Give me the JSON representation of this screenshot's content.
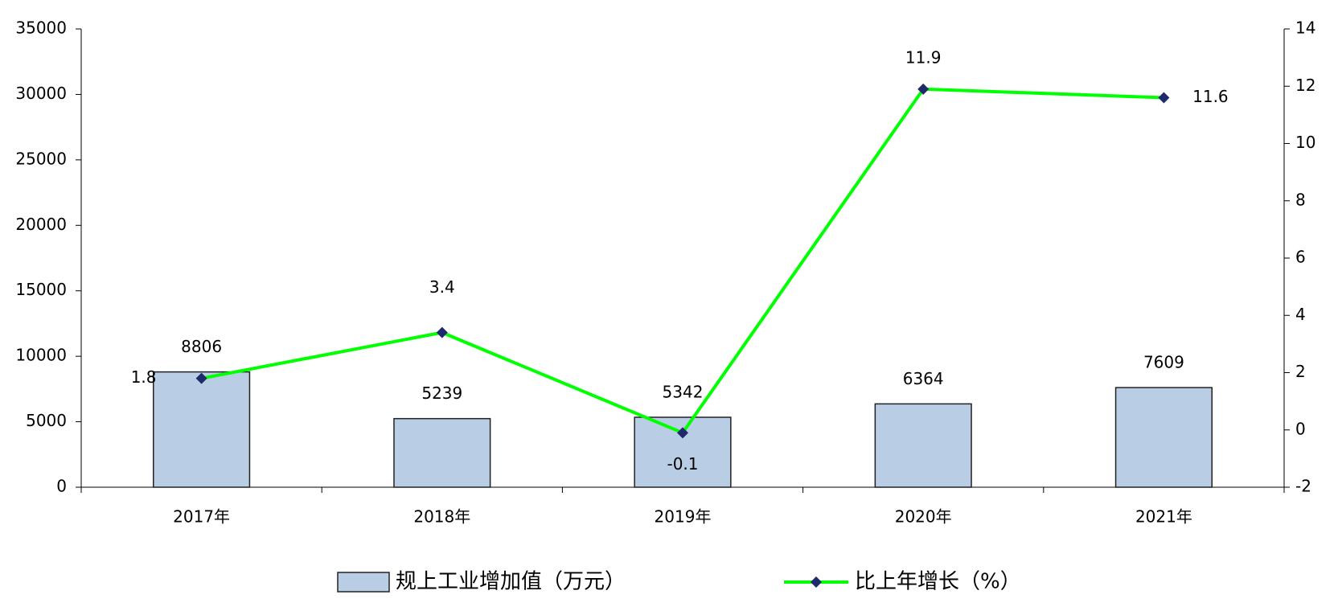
{
  "chart_data": {
    "type": "bar",
    "categories": [
      "2017年",
      "2018年",
      "2019年",
      "2020年",
      "2021年"
    ],
    "series": [
      {
        "name": "规上工业增加值（万元）",
        "type": "bar",
        "color": "#b9cde5",
        "values": [
          8806,
          5239,
          5342,
          6364,
          7609
        ]
      },
      {
        "name": "比上年增长（%）",
        "type": "line",
        "axis": "y2",
        "color": "#00ff00",
        "marker_color": "#1f2a6b",
        "values": [
          1.8,
          3.4,
          -0.1,
          11.9,
          11.6
        ]
      }
    ],
    "ylim": [
      0,
      35000
    ],
    "yticks": [
      0,
      5000,
      10000,
      15000,
      20000,
      25000,
      30000,
      35000
    ],
    "y2lim": [
      -2,
      14
    ],
    "y2ticks": [
      -2,
      0,
      2,
      4,
      6,
      8,
      10,
      12,
      14
    ],
    "grid": false
  }
}
